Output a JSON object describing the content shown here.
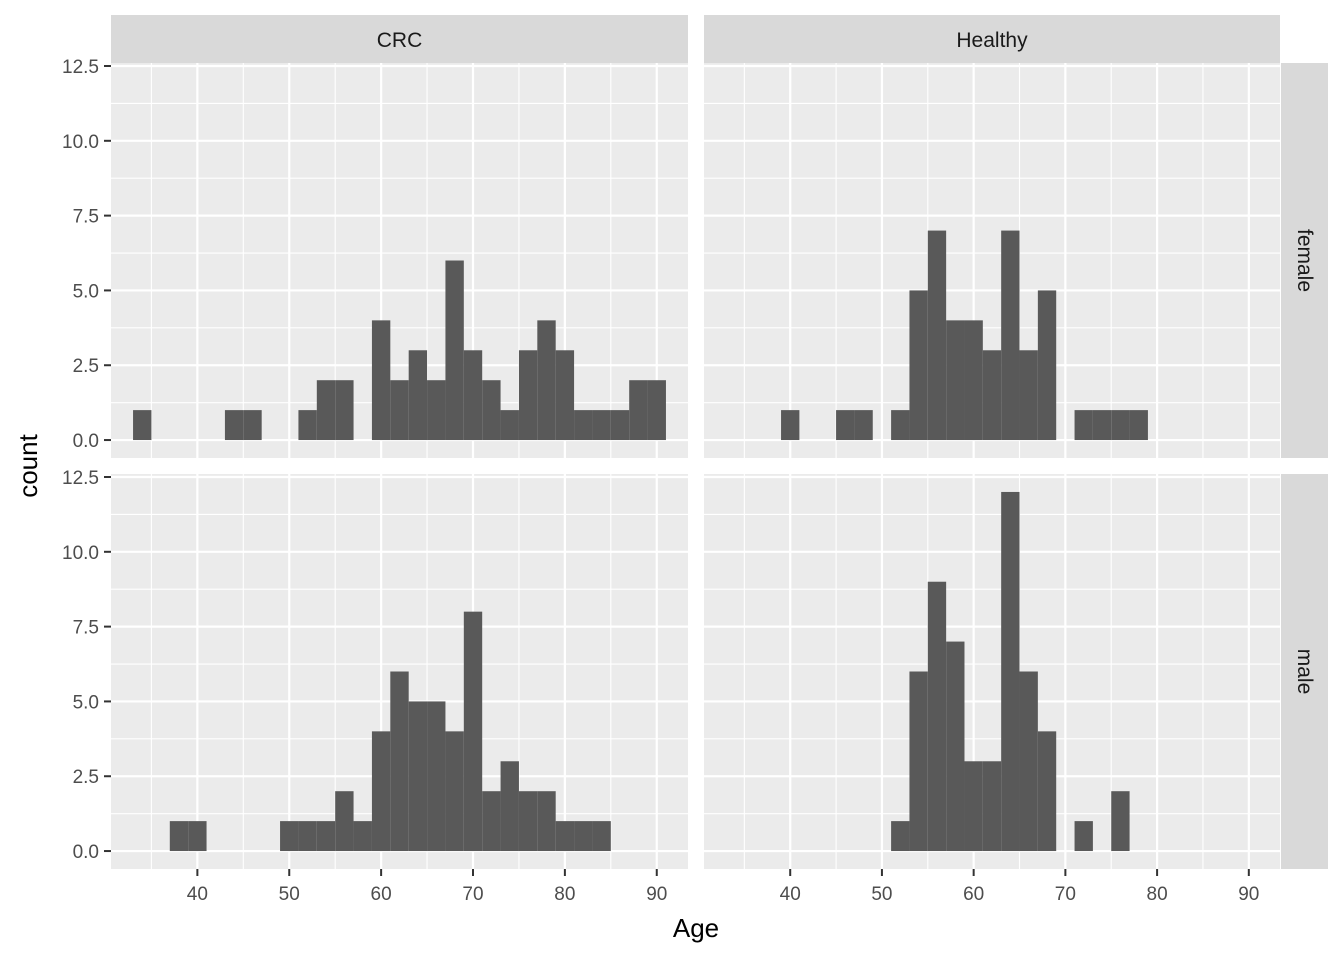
{
  "chart_data": {
    "type": "bar",
    "subtype": "faceted-histogram",
    "xlabel": "Age",
    "ylabel": "count",
    "xlim": [
      30.6,
      93.4
    ],
    "ylim": [
      -0.6,
      12.6
    ],
    "xticks": [
      40,
      50,
      60,
      70,
      80,
      90
    ],
    "yticks": [
      0,
      2.5,
      5,
      7.5,
      10,
      12.5
    ],
    "ytick_labels": [
      "0.0",
      "2.5",
      "5.0",
      "7.5",
      "10.0",
      "12.5"
    ],
    "bin_width": 2,
    "grid": true,
    "bar_color": "#595959",
    "panel_background": "#ebebeb",
    "strip_background": "#d9d9d9",
    "col_facets": [
      "CRC",
      "Healthy"
    ],
    "row_facets": [
      "female",
      "male"
    ],
    "panels": [
      {
        "col": "CRC",
        "row": "female",
        "bins": [
          [
            34,
            1
          ],
          [
            44,
            1
          ],
          [
            46,
            1
          ],
          [
            52,
            1
          ],
          [
            54,
            2
          ],
          [
            56,
            2
          ],
          [
            60,
            4
          ],
          [
            62,
            2
          ],
          [
            64,
            3
          ],
          [
            66,
            2
          ],
          [
            68,
            6
          ],
          [
            70,
            3
          ],
          [
            72,
            2
          ],
          [
            74,
            1
          ],
          [
            76,
            3
          ],
          [
            78,
            4
          ],
          [
            80,
            3
          ],
          [
            82,
            1
          ],
          [
            84,
            1
          ],
          [
            86,
            1
          ],
          [
            88,
            2
          ],
          [
            90,
            2
          ]
        ]
      },
      {
        "col": "Healthy",
        "row": "female",
        "bins": [
          [
            40,
            1
          ],
          [
            46,
            1
          ],
          [
            48,
            1
          ],
          [
            52,
            1
          ],
          [
            54,
            5
          ],
          [
            56,
            7
          ],
          [
            58,
            4
          ],
          [
            60,
            4
          ],
          [
            62,
            3
          ],
          [
            64,
            7
          ],
          [
            66,
            3
          ],
          [
            68,
            5
          ],
          [
            72,
            1
          ],
          [
            74,
            1
          ],
          [
            76,
            1
          ],
          [
            78,
            1
          ]
        ]
      },
      {
        "col": "CRC",
        "row": "male",
        "bins": [
          [
            38,
            1
          ],
          [
            40,
            1
          ],
          [
            50,
            1
          ],
          [
            52,
            1
          ],
          [
            54,
            1
          ],
          [
            56,
            2
          ],
          [
            58,
            1
          ],
          [
            60,
            4
          ],
          [
            62,
            6
          ],
          [
            64,
            5
          ],
          [
            66,
            5
          ],
          [
            68,
            4
          ],
          [
            70,
            8
          ],
          [
            72,
            2
          ],
          [
            74,
            3
          ],
          [
            76,
            2
          ],
          [
            78,
            2
          ],
          [
            80,
            1
          ],
          [
            82,
            1
          ],
          [
            84,
            1
          ]
        ]
      },
      {
        "col": "Healthy",
        "row": "male",
        "bins": [
          [
            52,
            1
          ],
          [
            54,
            6
          ],
          [
            56,
            9
          ],
          [
            58,
            7
          ],
          [
            60,
            3
          ],
          [
            62,
            3
          ],
          [
            64,
            12
          ],
          [
            66,
            6
          ],
          [
            68,
            4
          ],
          [
            72,
            1
          ],
          [
            76,
            2
          ]
        ]
      }
    ]
  }
}
